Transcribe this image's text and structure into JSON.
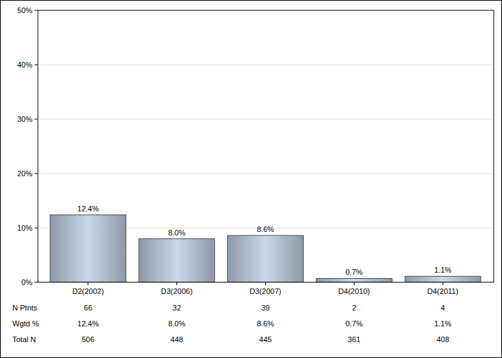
{
  "chart_data": {
    "type": "bar",
    "categories": [
      "D2(2002)",
      "D3(2006)",
      "D3(2007)",
      "D4(2010)",
      "D4(2011)"
    ],
    "values": [
      12.4,
      8.0,
      8.6,
      0.7,
      1.1
    ],
    "value_labels": [
      "12.4%",
      "8.0%",
      "8.6%",
      "0.7%",
      "1.1%"
    ],
    "color": "#c8d8ea",
    "ylim": [
      0,
      50
    ],
    "yticks": [
      {
        "value": 0,
        "label": "0%"
      },
      {
        "value": 10,
        "label": "10%"
      },
      {
        "value": 20,
        "label": "20%"
      },
      {
        "value": 30,
        "label": "30%"
      },
      {
        "value": 40,
        "label": "40%"
      },
      {
        "value": 50,
        "label": "50%"
      }
    ],
    "grid": true,
    "data_labels": true,
    "table_rows": [
      {
        "label": "N Ptnts",
        "values": [
          66,
          32,
          39,
          2,
          4
        ]
      },
      {
        "label": "Wgtd %",
        "values": [
          "12.4%",
          "8.0%",
          "8.6%",
          "0.7%",
          "1.1%"
        ]
      },
      {
        "label": "Total N",
        "values": [
          506,
          448,
          445,
          361,
          408
        ]
      }
    ]
  }
}
